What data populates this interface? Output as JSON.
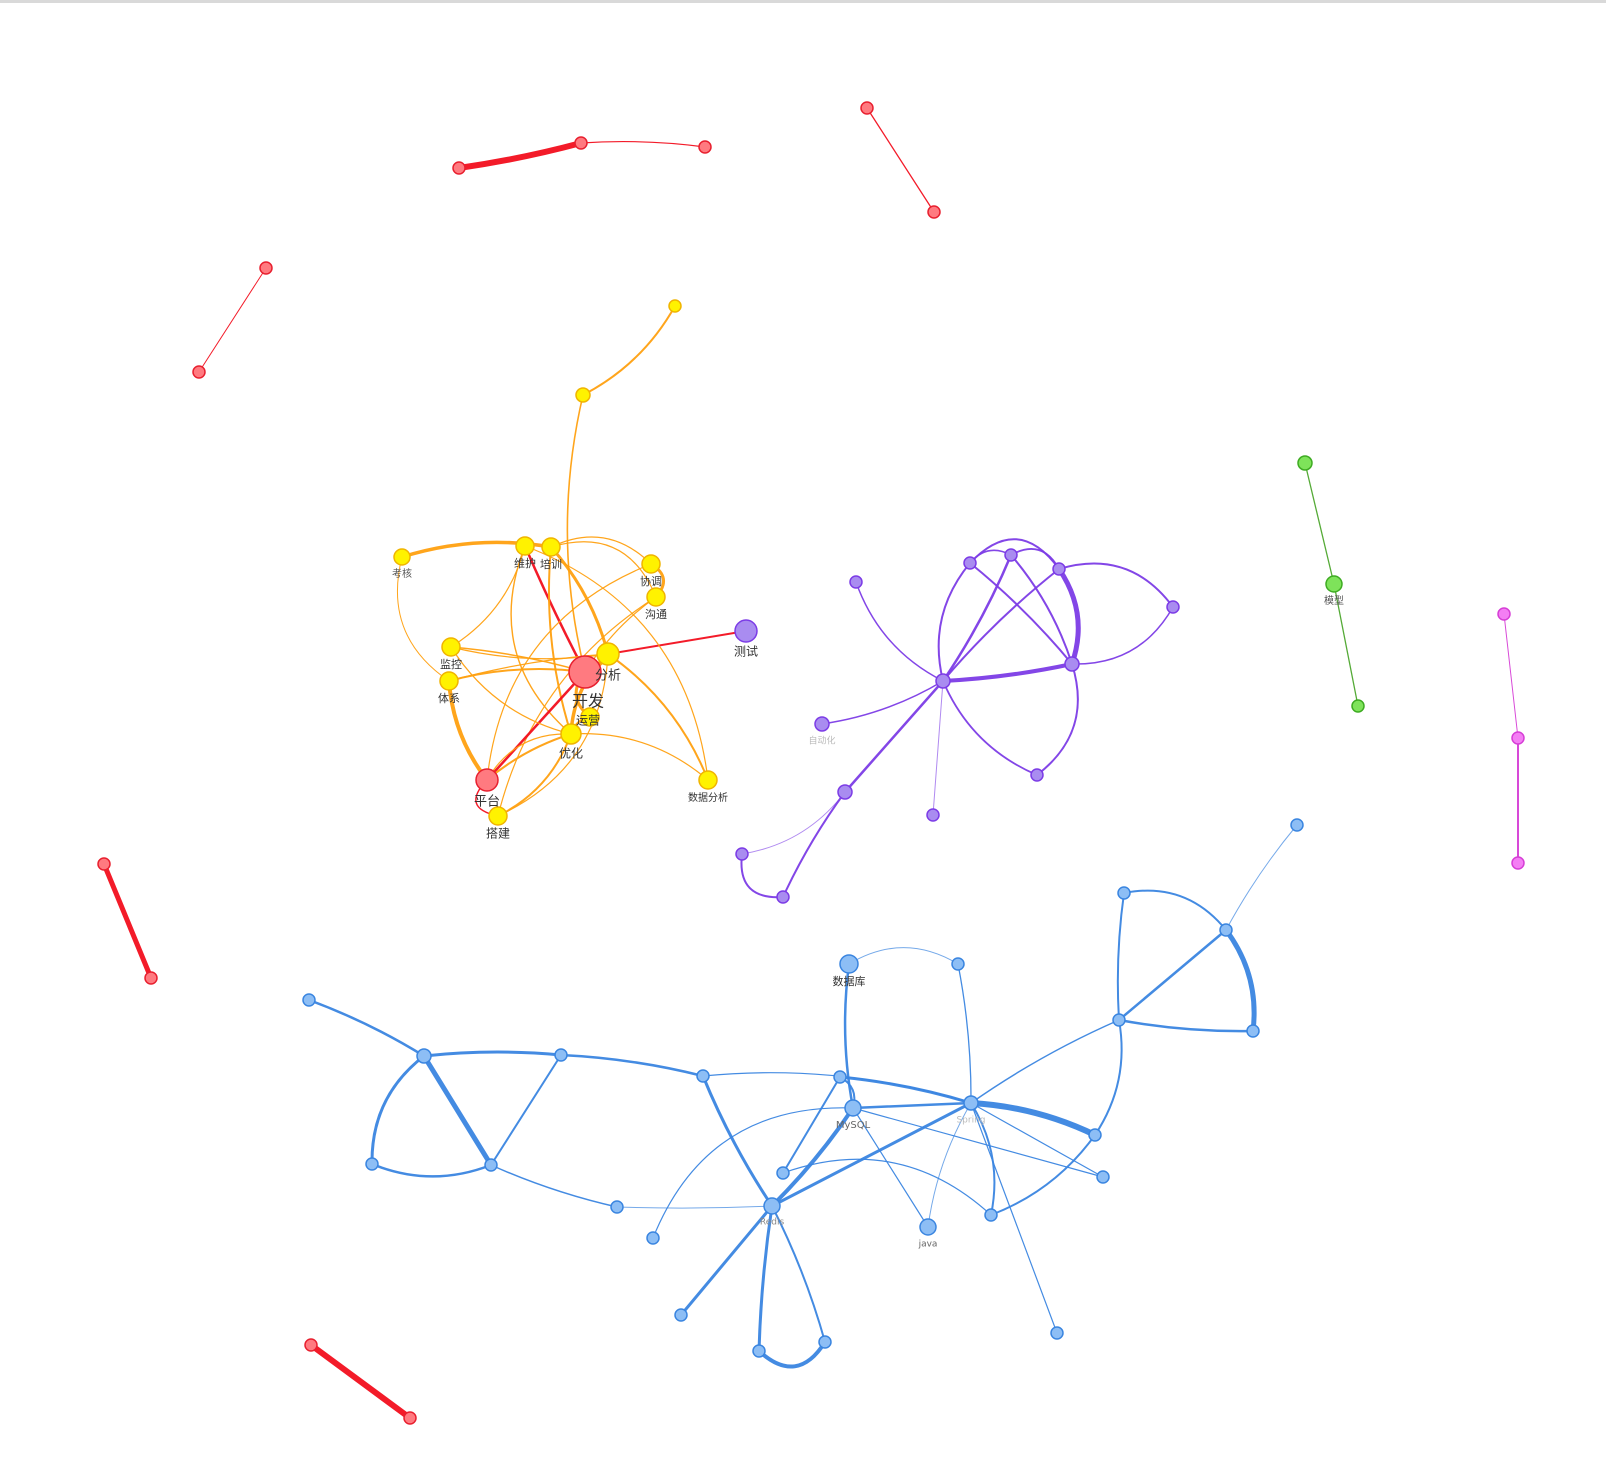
{
  "graph": {
    "type": "network",
    "colors": {
      "red": {
        "fill": "#ff7a80",
        "stroke": "#e8202f",
        "edge": "#f20f1d"
      },
      "yellow": {
        "fill": "#fff200",
        "stroke": "#f0b400",
        "edge": "#ffa010"
      },
      "purple": {
        "fill": "#a98cf0",
        "stroke": "#7c3ce6",
        "edge": "#7c3ce6"
      },
      "blue": {
        "fill": "#8dbef5",
        "stroke": "#3a85e0",
        "edge": "#3a85e0"
      },
      "green": {
        "fill": "#7ee35a",
        "stroke": "#3eab22",
        "edge": "#4ca52c"
      },
      "pink": {
        "fill": "#f47ef4",
        "stroke": "#d63fd6",
        "edge": "#d63fd6"
      }
    },
    "labels": {
      "kaifa": "开发",
      "fenxi": "分析",
      "yunying": "运营",
      "youhua": "优化",
      "pingtai": "平台",
      "dajian": "搭建",
      "weihu": "维护",
      "peixun": "培训",
      "xietiao": "协调",
      "goutong": "沟通",
      "kaohe": "考核",
      "jiankong": "监控",
      "tixi": "体系",
      "shujufenxi": "数据分析",
      "ceshi": "测试",
      "moxing": "模型",
      "shujuku": "数据库",
      "mysql": "MySQL",
      "redis": "Redis",
      "java": "java",
      "spring": "Spring",
      "zidonghua": "自动化"
    }
  }
}
